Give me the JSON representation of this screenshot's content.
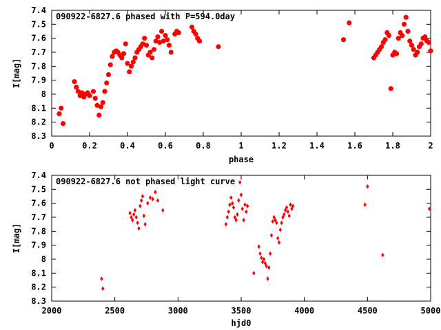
{
  "chart_data": [
    {
      "type": "scatter",
      "title": "090922-6827.6 phased with P=594.0day",
      "xlabel": "phase",
      "ylabel": "I[mag]",
      "xlim": [
        0,
        2
      ],
      "ylim": [
        8.3,
        7.4
      ],
      "y_inverted": true,
      "xticks": [
        "0",
        "0.2",
        "0.4",
        "0.6",
        "0.8",
        "1",
        "1.2",
        "1.4",
        "1.6",
        "1.8",
        "2"
      ],
      "yticks": [
        "7.4",
        "7.5",
        "7.6",
        "7.7",
        "7.8",
        "7.9",
        "8",
        "8.1",
        "8.2",
        "8.3"
      ],
      "marker_color": "#ff0000",
      "series": [
        {
          "x": [
            0.04,
            0.05,
            0.06,
            0.12,
            0.13,
            0.14,
            0.15,
            0.16,
            0.17,
            0.18,
            0.19,
            0.2,
            0.22,
            0.23,
            0.24,
            0.25,
            0.26,
            0.27,
            0.28,
            0.29,
            0.3,
            0.31,
            0.32,
            0.33,
            0.34,
            0.35,
            0.36,
            0.37,
            0.38,
            0.39,
            0.4,
            0.41,
            0.42,
            0.43,
            0.44,
            0.45,
            0.46,
            0.47,
            0.48,
            0.49,
            0.5,
            0.51,
            0.52,
            0.53,
            0.54,
            0.55,
            0.56,
            0.57,
            0.58,
            0.59,
            0.6,
            0.61,
            0.62,
            0.63,
            0.65,
            0.66,
            0.67,
            0.74,
            0.75,
            0.76,
            0.77,
            0.78,
            0.88,
            1.54,
            1.57,
            1.7,
            1.71,
            1.72,
            1.73,
            1.74,
            1.75,
            1.76,
            1.77,
            1.78,
            1.79,
            1.8,
            1.81,
            1.82,
            1.83,
            1.84,
            1.85,
            1.86,
            1.87,
            1.88,
            1.89,
            1.9,
            1.91,
            1.92,
            1.93,
            1.94,
            1.95,
            1.96,
            1.97,
            1.98,
            1.99,
            2.0
          ],
          "y": [
            8.14,
            8.1,
            8.21,
            7.91,
            7.95,
            7.98,
            8.01,
            7.99,
            8.02,
            8.0,
            7.99,
            8.01,
            7.98,
            8.03,
            8.08,
            8.15,
            8.09,
            8.06,
            7.98,
            7.92,
            7.86,
            7.79,
            7.73,
            7.7,
            7.69,
            7.7,
            7.72,
            7.74,
            7.71,
            7.64,
            7.78,
            7.84,
            7.8,
            7.77,
            7.74,
            7.7,
            7.68,
            7.66,
            7.64,
            7.6,
            7.65,
            7.72,
            7.7,
            7.74,
            7.68,
            7.62,
            7.59,
            7.63,
            7.55,
            7.62,
            7.58,
            7.61,
            7.65,
            7.7,
            7.57,
            7.55,
            7.56,
            7.52,
            7.55,
            7.57,
            7.6,
            7.62,
            7.66,
            7.61,
            7.49,
            7.74,
            7.72,
            7.7,
            7.68,
            7.66,
            7.63,
            7.61,
            7.56,
            7.58,
            7.96,
            7.72,
            7.7,
            7.71,
            7.6,
            7.56,
            7.58,
            7.5,
            7.45,
            7.55,
            7.62,
            7.65,
            7.68,
            7.72,
            7.7,
            7.66,
            7.64,
            7.6,
            7.59,
            7.62,
            7.63,
            7.69
          ]
        }
      ]
    },
    {
      "type": "scatter",
      "title": "090922-6827.6 not phased light curve",
      "xlabel": "hjd0",
      "ylabel": "I[mag]",
      "xlim": [
        2000,
        5000
      ],
      "ylim": [
        8.3,
        7.4
      ],
      "y_inverted": true,
      "xticks": [
        "2000",
        "2500",
        "3000",
        "3500",
        "4000",
        "4500",
        "5000"
      ],
      "yticks": [
        "7.4",
        "7.5",
        "7.6",
        "7.7",
        "7.8",
        "7.9",
        "8",
        "8.1",
        "8.2",
        "8.3"
      ],
      "marker_color": "#ff0000",
      "series": [
        {
          "x": [
            2395,
            2405,
            2620,
            2630,
            2640,
            2650,
            2660,
            2670,
            2680,
            2690,
            2700,
            2710,
            2720,
            2730,
            2740,
            2760,
            2780,
            2800,
            2820,
            2840,
            2880,
            3380,
            3390,
            3400,
            3410,
            3420,
            3430,
            3440,
            3450,
            3460,
            3470,
            3480,
            3490,
            3500,
            3510,
            3520,
            3530,
            3540,
            3550,
            3600,
            3640,
            3650,
            3660,
            3670,
            3680,
            3690,
            3700,
            3710,
            3720,
            3730,
            3740,
            3750,
            3760,
            3770,
            3780,
            3790,
            3800,
            3810,
            3820,
            3830,
            3840,
            3850,
            3860,
            3870,
            3880,
            3890,
            3900,
            3910,
            4480,
            4500,
            4620,
            4990
          ],
          "y": [
            8.14,
            8.21,
            7.67,
            7.7,
            7.72,
            7.68,
            7.65,
            7.7,
            7.74,
            7.78,
            7.62,
            7.58,
            7.55,
            7.69,
            7.75,
            7.6,
            7.56,
            7.57,
            7.52,
            7.58,
            7.65,
            7.75,
            7.7,
            7.66,
            7.61,
            7.56,
            7.6,
            7.63,
            7.7,
            7.72,
            7.68,
            7.58,
            7.45,
            7.54,
            7.64,
            7.72,
            7.61,
            7.66,
            7.62,
            8.1,
            7.91,
            7.96,
            7.99,
            8.02,
            8.0,
            8.03,
            8.05,
            8.14,
            8.06,
            7.96,
            7.83,
            7.73,
            7.7,
            7.72,
            7.74,
            7.85,
            7.88,
            7.79,
            7.74,
            7.7,
            7.68,
            7.65,
            7.63,
            7.66,
            7.69,
            7.61,
            7.64,
            7.62,
            7.61,
            7.48,
            7.97,
            7.64
          ]
        }
      ]
    }
  ]
}
